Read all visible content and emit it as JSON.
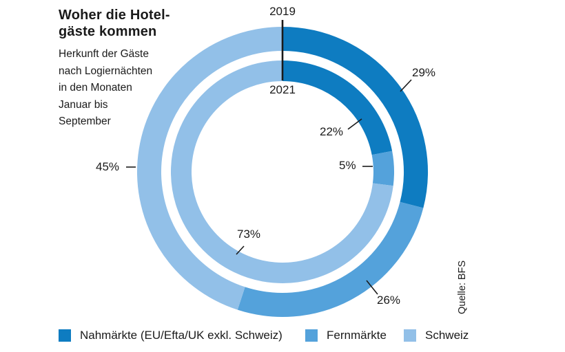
{
  "header": {
    "title_lines": [
      "Woher die Hotel-",
      "gäste kommen"
    ],
    "subtitle_lines": [
      "Herkunft der Gäste",
      "nach Logiernächten",
      "in den Monaten",
      "Januar bis",
      "September"
    ]
  },
  "chart_data": {
    "type": "pie",
    "variant": "double-donut",
    "title": "Woher die Hotelgäste kommen",
    "subtitle": "Herkunft der Gäste nach Logiernächten in den Monaten Januar bis September",
    "categories": [
      "Nahmärkte (EU/Efta/UK exkl. Schweiz)",
      "Fernmärkte",
      "Schweiz"
    ],
    "colors": [
      "#0e7cc1",
      "#54a2db",
      "#92c0e8"
    ],
    "rings": [
      {
        "name": "2019",
        "position": "outer",
        "values": [
          29,
          26,
          45
        ]
      },
      {
        "name": "2021",
        "position": "inner",
        "values": [
          22,
          5,
          73
        ]
      }
    ],
    "start_angle_deg": 0,
    "direction": "clockwise",
    "legend_position": "bottom",
    "source": "Quelle: BFS"
  },
  "labels": {
    "year_outer": "2019",
    "year_inner": "2021",
    "outer_nah": "29%",
    "outer_fern": "26%",
    "outer_schweiz": "45%",
    "inner_nah": "22%",
    "inner_fern": "5%",
    "inner_schweiz": "73%"
  },
  "legend": {
    "items": [
      {
        "label": "Nahmärkte (EU/Efta/UK exkl. Schweiz)",
        "color": "#0e7cc1"
      },
      {
        "label": "Fernmärkte",
        "color": "#54a2db"
      },
      {
        "label": "Schweiz",
        "color": "#92c0e8"
      }
    ]
  },
  "source": {
    "text": "Quelle: BFS"
  }
}
